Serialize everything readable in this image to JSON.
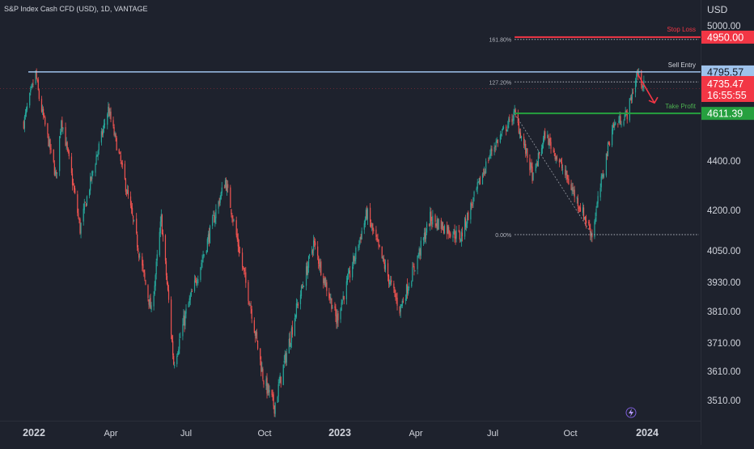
{
  "header": {
    "title": "S&P Index Cash CFD (USD), 1D, VANTAGE"
  },
  "chart_data": {
    "type": "candlestick",
    "currency": "USD",
    "y_ticks": [
      5000.0,
      4400.0,
      4200.0,
      4050.0,
      3930.0,
      3810.0,
      3710.0,
      3610.0,
      3510.0
    ],
    "y_tick_labels": [
      "5000.00",
      "4400.00",
      "4200.00",
      "4050.00",
      "3930.00",
      "3810.00",
      "3710.00",
      "3610.00",
      "3510.00"
    ],
    "x_tick_labels": [
      "2022",
      "Apr",
      "Jul",
      "Oct",
      "2023",
      "Apr",
      "Jul",
      "Oct",
      "2024"
    ],
    "x_tick_bold": [
      true,
      false,
      false,
      false,
      true,
      false,
      false,
      false,
      true
    ],
    "price_path": [
      [
        "2021-12-20",
        4570
      ],
      [
        "2022-01-03",
        4790
      ],
      [
        "2022-01-07",
        4680
      ],
      [
        "2022-01-27",
        4330
      ],
      [
        "2022-02-02",
        4590
      ],
      [
        "2022-02-24",
        4130
      ],
      [
        "2022-03-29",
        4630
      ],
      [
        "2022-05-20",
        3810
      ],
      [
        "2022-06-01",
        4170
      ],
      [
        "2022-06-16",
        3640
      ],
      [
        "2022-08-16",
        4320
      ],
      [
        "2022-09-30",
        3580
      ],
      [
        "2022-10-13",
        3490
      ],
      [
        "2022-11-30",
        4080
      ],
      [
        "2022-12-28",
        3780
      ],
      [
        "2023-02-02",
        4190
      ],
      [
        "2023-03-13",
        3820
      ],
      [
        "2023-04-18",
        4170
      ],
      [
        "2023-05-24",
        4100
      ],
      [
        "2023-06-30",
        4450
      ],
      [
        "2023-07-27",
        4610
      ],
      [
        "2023-08-18",
        4330
      ],
      [
        "2023-09-01",
        4520
      ],
      [
        "2023-10-27",
        4110
      ],
      [
        "2023-11-20",
        4550
      ],
      [
        "2023-12-08",
        4610
      ],
      [
        "2023-12-20",
        4790
      ],
      [
        "2023-12-28",
        4735
      ]
    ],
    "levels": {
      "stop_loss": {
        "label": "Stop Loss",
        "value": 4950.0,
        "value_label": "4950.00",
        "color": "#f23645"
      },
      "sell_entry": {
        "label": "Sell Entry",
        "value": 4795.57,
        "value_label": "4795.57",
        "color": "#9fc3ec"
      },
      "take_profit": {
        "label": "Take Profit",
        "value": 4611.39,
        "value_label": "4611.39",
        "color": "#26a03f"
      }
    },
    "last_price": {
      "value": 4735.47,
      "label": "4735.47",
      "countdown": "16:55:55",
      "color": "#f23645"
    },
    "fibonacci": {
      "levels": [
        {
          "label": "161.80%",
          "value": 4940
        },
        {
          "label": "127.20%",
          "value": 4751
        },
        {
          "label": "0.00%",
          "value": 4110
        }
      ],
      "start_date": "2023-07-27",
      "end_date": "2023-12-31"
    },
    "trend_line": {
      "from": [
        "2023-07-27",
        4610
      ],
      "to": [
        "2023-10-27",
        4110
      ]
    },
    "arrow": {
      "from": [
        "2023-12-20",
        4790
      ],
      "to": [
        "2023-12-31",
        4640
      ]
    }
  },
  "colors": {
    "background": "#1e222d",
    "up_candle": "#26a69a",
    "down_candle": "#ef5350",
    "axis_text": "#d1d4dc"
  }
}
